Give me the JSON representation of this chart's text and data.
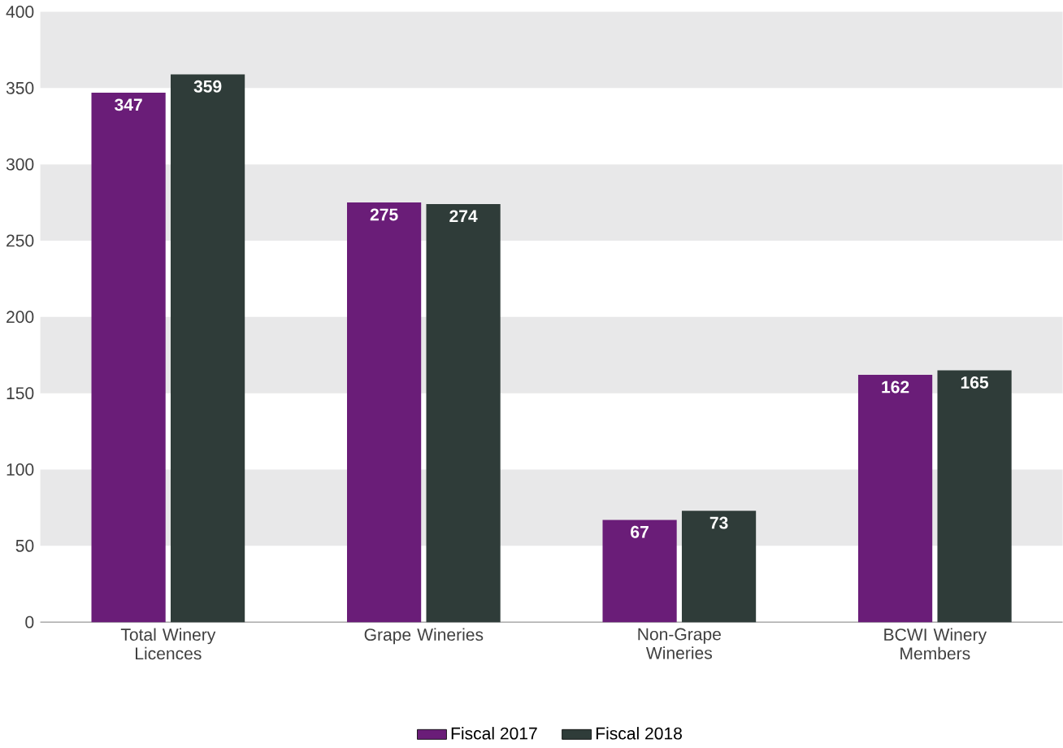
{
  "chart_data": {
    "type": "bar",
    "categories": [
      "Total Winery Licences",
      "Grape Wineries",
      "Non-Grape Wineries",
      "BCWI Winery Members"
    ],
    "series": [
      {
        "name": "Fiscal 2017",
        "color": "#6a1d78",
        "values": [
          347,
          275,
          67,
          162
        ]
      },
      {
        "name": "Fiscal 2018",
        "color": "#2f3c39",
        "values": [
          359,
          274,
          73,
          165
        ]
      }
    ],
    "ylim": [
      0,
      400
    ],
    "yticks": [
      0,
      50,
      100,
      150,
      200,
      250,
      300,
      350,
      400
    ],
    "bands": [
      {
        "axis": "y",
        "from": 50,
        "to": 100,
        "color": "#e8e8e9"
      },
      {
        "axis": "y",
        "from": 150,
        "to": 200,
        "color": "#e8e8e9"
      },
      {
        "axis": "y",
        "from": 250,
        "to": 300,
        "color": "#e8e8e9"
      },
      {
        "axis": "y",
        "from": 350,
        "to": 400,
        "color": "#e8e8e9"
      }
    ],
    "data_labels": true,
    "legend": "bottom"
  }
}
